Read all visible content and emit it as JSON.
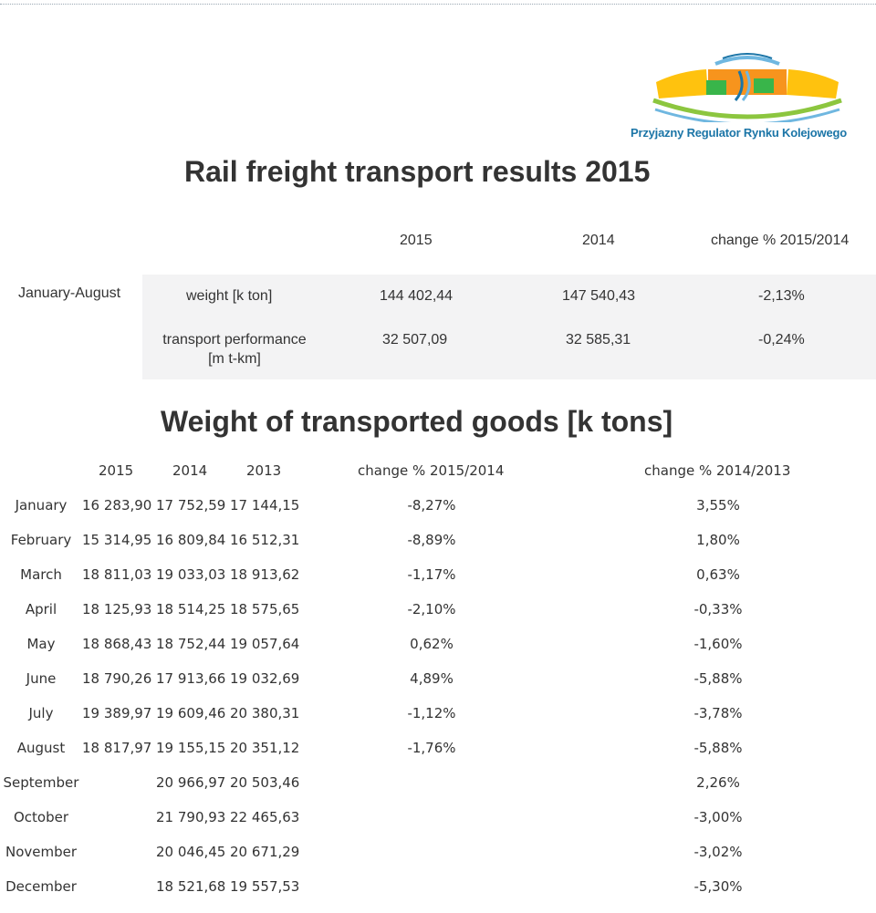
{
  "logo": {
    "name": "Przyjazny Regulator Rynku Kolejowego",
    "colors": {
      "blue": "#1b75a7",
      "green": "#8cc63f",
      "yellow": "#ffc20e",
      "orange": "#f7941d",
      "light_blue": "#6fb7e0"
    }
  },
  "title": "Rail freight transport results 2015",
  "summary": {
    "headers": [
      "2015",
      "2014",
      "change % 2015/2014"
    ],
    "period": "January-August",
    "rows": [
      {
        "metric": "weight [k ton]",
        "v2015": "144 402,44",
        "v2014": "147 540,43",
        "change": "-2,13%"
      },
      {
        "metric_line1": "transport performance",
        "metric_line2": "[m t-km]",
        "v2015": "32 507,09",
        "v2014": "32 585,31",
        "change": "-0,24%"
      }
    ]
  },
  "weight_section": {
    "title": "Weight of transported goods [k tons]",
    "headers": [
      "2015",
      "2014",
      "2013",
      "change % 2015/2014",
      "change % 2014/2013"
    ],
    "rows": [
      {
        "month": "January",
        "v2015": "16 283,90",
        "v2014": "17 752,59",
        "v2013": "17 144,15",
        "ch1": "-8,27%",
        "ch2": "3,55%"
      },
      {
        "month": "February",
        "v2015": "15 314,95",
        "v2014": "16 809,84",
        "v2013": "16 512,31",
        "ch1": "-8,89%",
        "ch2": "1,80%"
      },
      {
        "month": "March",
        "v2015": "18 811,03",
        "v2014": "19 033,03",
        "v2013": "18 913,62",
        "ch1": "-1,17%",
        "ch2": "0,63%"
      },
      {
        "month": "April",
        "v2015": "18 125,93",
        "v2014": "18 514,25",
        "v2013": "18 575,65",
        "ch1": "-2,10%",
        "ch2": "-0,33%"
      },
      {
        "month": "May",
        "v2015": "18 868,43",
        "v2014": "18 752,44",
        "v2013": "19 057,64",
        "ch1": "0,62%",
        "ch2": "-1,60%"
      },
      {
        "month": "June",
        "v2015": "18 790,26",
        "v2014": "17 913,66",
        "v2013": "19 032,69",
        "ch1": "4,89%",
        "ch2": "-5,88%"
      },
      {
        "month": "July",
        "v2015": "19 389,97",
        "v2014": "19 609,46",
        "v2013": "20 380,31",
        "ch1": "-1,12%",
        "ch2": "-3,78%"
      },
      {
        "month": "August",
        "v2015": "18 817,97",
        "v2014": "19 155,15",
        "v2013": "20 351,12",
        "ch1": "-1,76%",
        "ch2": "-5,88%"
      },
      {
        "month": "September",
        "v2015": "",
        "v2014": "20 966,97",
        "v2013": "20 503,46",
        "ch1": "",
        "ch2": "2,26%"
      },
      {
        "month": "October",
        "v2015": "",
        "v2014": "21 790,93",
        "v2013": "22 465,63",
        "ch1": "",
        "ch2": "-3,00%"
      },
      {
        "month": "November",
        "v2015": "",
        "v2014": "20 046,45",
        "v2013": "20 671,29",
        "ch1": "",
        "ch2": "-3,02%"
      },
      {
        "month": "December",
        "v2015": "",
        "v2014": "18 521,68",
        "v2013": "19 557,53",
        "ch1": "",
        "ch2": "-5,30%"
      }
    ]
  }
}
